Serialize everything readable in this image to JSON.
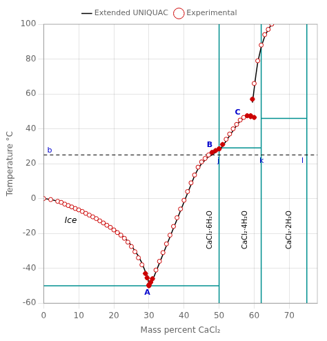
{
  "chart_data": {
    "type": "scatter",
    "x_label": "Mass percent CaCl₂",
    "y_label": "Temperature °C",
    "xlim": [
      0,
      78
    ],
    "ylim": [
      -60,
      100
    ],
    "xticks": [
      0,
      10,
      20,
      30,
      40,
      50,
      60,
      70
    ],
    "yticks": [
      -60,
      -40,
      -20,
      0,
      20,
      40,
      60,
      80,
      100
    ],
    "grid": true,
    "legend": "top",
    "series": [
      {
        "name": "Extended UNIQUAC",
        "type": "line",
        "color": "#000000",
        "marker": "none",
        "x": [
          0,
          2,
          4,
          6,
          8,
          10,
          12,
          14,
          16,
          18,
          20,
          22,
          24,
          25,
          26,
          27,
          28,
          29,
          29.5,
          30,
          30.2,
          null,
          30.2,
          31,
          32,
          33,
          34,
          35,
          36,
          37,
          38,
          39,
          40,
          41,
          42,
          43,
          44,
          45,
          46,
          47,
          48,
          49,
          50,
          null,
          50,
          51,
          52,
          53,
          54,
          55,
          56,
          57,
          58,
          59,
          60,
          null,
          59.5,
          60,
          60.5,
          61,
          62,
          63,
          64,
          65
        ],
        "values": [
          0,
          -0.5,
          -1.5,
          -3,
          -4.5,
          -6.5,
          -8.5,
          -10.5,
          -12.5,
          -15,
          -17.5,
          -20.5,
          -24.5,
          -27,
          -30,
          -33,
          -37,
          -42,
          -44,
          -49,
          -51,
          null,
          -51,
          -47,
          -42,
          -37,
          -32,
          -27,
          -22,
          -17,
          -12,
          -7,
          -2,
          3,
          8,
          13,
          17,
          20,
          22,
          24,
          25,
          26.5,
          28,
          null,
          28,
          30,
          33,
          36,
          39,
          42,
          44.5,
          46,
          47,
          47,
          46,
          null,
          55,
          63,
          71,
          78,
          87,
          93,
          97,
          100
        ]
      },
      {
        "name": "Experimental",
        "type": "scatter",
        "color": "#cc0000",
        "marker": "open_circle",
        "x": [
          0,
          2,
          4,
          5,
          6,
          7,
          8,
          9,
          10,
          11,
          12,
          13,
          14,
          15,
          16,
          17,
          18,
          19,
          20,
          21,
          22,
          23,
          24,
          25,
          26,
          27,
          28,
          29,
          29.5,
          30,
          30,
          30.5,
          31,
          32,
          33,
          34,
          35,
          36,
          37,
          38,
          39,
          40,
          41,
          42,
          43,
          44,
          45,
          46,
          47,
          48,
          49,
          50,
          50,
          51,
          52,
          53,
          54,
          55,
          56,
          57,
          58,
          59,
          60,
          59,
          59.5,
          60,
          61,
          62,
          63,
          64,
          65
        ],
        "values": [
          0,
          -0.6,
          -1.6,
          -2.2,
          -3.2,
          -4.0,
          -4.8,
          -5.7,
          -6.5,
          -7.4,
          -8.5,
          -9.5,
          -10.5,
          -11.5,
          -12.8,
          -14.0,
          -15.3,
          -16.5,
          -18.0,
          -19.5,
          -21.0,
          -22.8,
          -25.0,
          -27.5,
          -30.5,
          -34.0,
          -38.0,
          -43.0,
          -45.5,
          -49.5,
          -50,
          -48,
          -46,
          -41,
          -36,
          -31,
          -26,
          -21,
          -16,
          -11,
          -6,
          -1,
          4,
          9,
          13.5,
          18,
          21,
          23,
          25,
          26.5,
          27.5,
          28.5,
          28.5,
          31,
          34,
          37,
          40,
          42.5,
          45,
          46.5,
          47.5,
          47.5,
          46.5,
          47,
          57,
          66,
          79,
          88,
          94,
          97,
          100
        ]
      },
      {
        "type": "scatter",
        "color": "#cc0000",
        "marker": "diamond",
        "x": [
          29,
          29.5,
          30,
          30,
          30.5,
          31,
          48,
          49,
          50,
          50,
          51,
          58,
          59,
          60,
          59,
          59.5
        ],
        "values": [
          -43,
          -45.5,
          -49.5,
          -50,
          -48,
          -46,
          26.5,
          27.5,
          28.5,
          28.5,
          31,
          47.5,
          47.5,
          46.5,
          47,
          57
        ]
      }
    ],
    "phase_lines": {
      "color": "#009090",
      "vertical": [
        50,
        62,
        75
      ],
      "horizontal": [
        {
          "y": -50,
          "x": [
            0,
            50
          ]
        },
        {
          "y": 29,
          "x": [
            50,
            62
          ]
        },
        {
          "y": 46,
          "x": [
            62,
            75
          ]
        }
      ]
    },
    "dashed_line": {
      "color": "#000000",
      "line_style": "dashed",
      "y": 25,
      "x": [
        0,
        78
      ]
    },
    "phase_labels": [
      {
        "text": "CaCl₂·6H₂O",
        "x": 47.5,
        "y": -18
      },
      {
        "text": "CaCl₂·4H₂O",
        "x": 57.5,
        "y": -18
      },
      {
        "text": "CaCl₂·2H₂O",
        "x": 70,
        "y": -18
      }
    ],
    "annotations": [
      {
        "text": "Ice",
        "x": 6,
        "y": -14
      }
    ],
    "point_labels": {
      "color": "#0000cc",
      "labels": [
        {
          "text": "A",
          "x": 28.7,
          "y": -55
        },
        {
          "text": "B",
          "x": 46.5,
          "y": 29.5
        },
        {
          "text": "C",
          "x": 54.5,
          "y": 48
        }
      ]
    },
    "line_labels": {
      "color": "#0000cc",
      "labels": [
        {
          "text": "b",
          "x": 1.0,
          "y": 26.5
        },
        {
          "text": "j",
          "x": 49.5,
          "y": 20.5
        },
        {
          "text": "k",
          "x": 61.5,
          "y": 20.5
        },
        {
          "text": "l",
          "x": 73.5,
          "y": 20.5
        }
      ]
    }
  }
}
